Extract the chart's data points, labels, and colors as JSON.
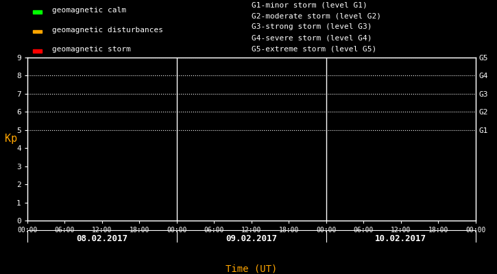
{
  "background_color": "#000000",
  "plot_bg_color": "#000000",
  "text_color": "#ffffff",
  "orange_color": "#ffa500",
  "ylabel": "Kp",
  "xlabel": "Time (UT)",
  "ylim": [
    0,
    9
  ],
  "yticks": [
    0,
    1,
    2,
    3,
    4,
    5,
    6,
    7,
    8,
    9
  ],
  "days": [
    "08.02.2017",
    "09.02.2017",
    "10.02.2017"
  ],
  "time_ticks_labels": [
    "00:00",
    "06:00",
    "12:00",
    "18:00",
    "00:00",
    "06:00",
    "12:00",
    "18:00",
    "00:00",
    "06:00",
    "12:00",
    "18:00",
    "00:00"
  ],
  "time_ticks_positions": [
    0,
    6,
    12,
    18,
    24,
    30,
    36,
    42,
    48,
    54,
    60,
    66,
    72
  ],
  "day_dividers": [
    24,
    48
  ],
  "grid_y_values": [
    5,
    6,
    7,
    8,
    9
  ],
  "right_labels": [
    {
      "y": 5,
      "text": "G1"
    },
    {
      "y": 6,
      "text": "G2"
    },
    {
      "y": 7,
      "text": "G3"
    },
    {
      "y": 8,
      "text": "G4"
    },
    {
      "y": 9,
      "text": "G5"
    }
  ],
  "legend_left": [
    {
      "color": "#00ff00",
      "label": "geomagnetic calm"
    },
    {
      "color": "#ffa500",
      "label": "geomagnetic disturbances"
    },
    {
      "color": "#ff0000",
      "label": "geomagnetic storm"
    }
  ],
  "legend_right_lines": [
    "G1-minor storm (level G1)",
    "G2-moderate storm (level G2)",
    "G3-strong storm (level G3)",
    "G4-severe storm (level G4)",
    "G5-extreme storm (level G5)"
  ],
  "font_family": "monospace",
  "font_size": 8,
  "spine_color": "#ffffff",
  "tick_color": "#ffffff",
  "dot_color": "#ffffff"
}
